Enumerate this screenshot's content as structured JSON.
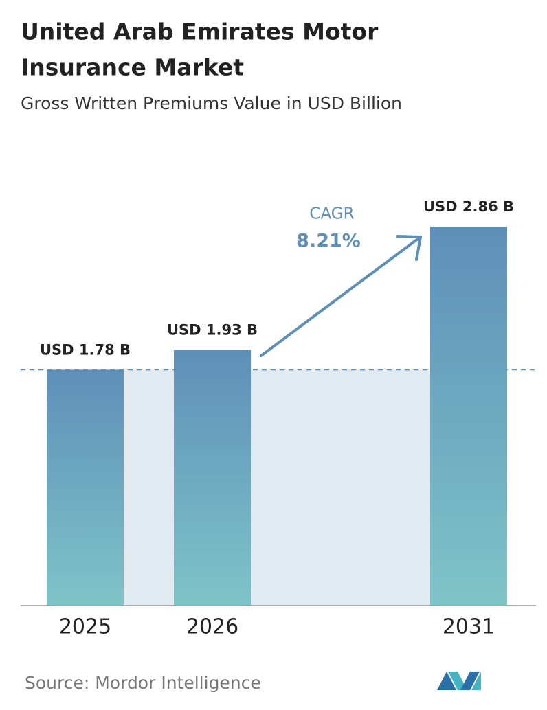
{
  "chart_data": {
    "type": "bar",
    "title": "United Arab Emirates Motor Insurance Market",
    "subtitle": "Gross Written Premiums Value in USD Billion",
    "categories": [
      "2025",
      "2026",
      "2031"
    ],
    "values": [
      1.78,
      1.93,
      2.86
    ],
    "value_labels": [
      "USD 1.78 B",
      "USD 1.93 B",
      "USD 2.86 B"
    ],
    "gradient": {
      "top": "#5e8fb9",
      "bottom": "#7fc4c8"
    },
    "annotation": {
      "label": "CAGR",
      "value": "8.21%"
    },
    "source": "Source: Mordor Intelligence"
  }
}
